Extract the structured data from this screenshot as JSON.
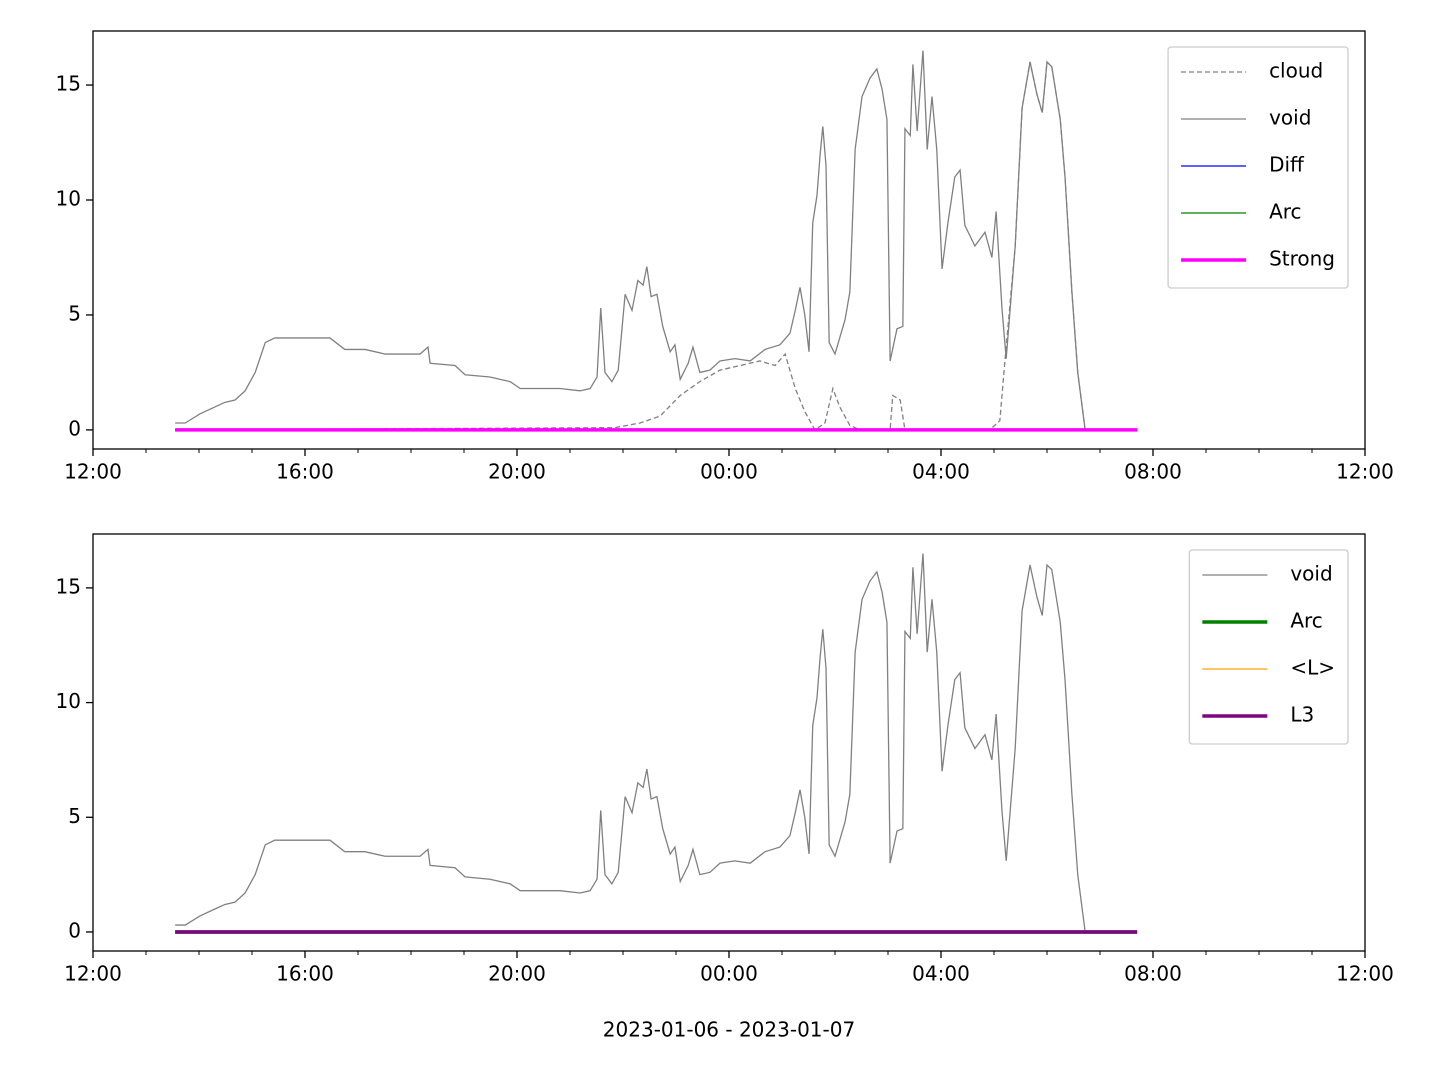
{
  "chart_data": [
    {
      "type": "line",
      "xlim": [
        12,
        36
      ],
      "xticks": [
        {
          "value": 12,
          "label": "12:00"
        },
        {
          "value": 16,
          "label": "16:00"
        },
        {
          "value": 20,
          "label": "20:00"
        },
        {
          "value": 24,
          "label": "00:00"
        },
        {
          "value": 28,
          "label": "04:00"
        },
        {
          "value": 32,
          "label": "08:00"
        },
        {
          "value": 36,
          "label": "12:00"
        }
      ],
      "xminorticks": [
        13,
        14,
        15,
        17,
        18,
        19,
        21,
        22,
        23,
        25,
        26,
        27,
        29,
        30,
        31,
        33,
        34,
        35
      ],
      "ylim": [
        -0.83,
        17.35
      ],
      "yticks": [
        0,
        5,
        10,
        15
      ],
      "legend": "upper right",
      "series": [
        {
          "name": "cloud",
          "color": "#808080",
          "linestyle": "dashed",
          "linewidth": 1.3,
          "x": [
            13.55,
            21.85,
            22.32,
            22.7,
            23.08,
            23.45,
            23.83,
            24.21,
            24.58,
            24.87,
            25.06,
            25.25,
            25.43,
            25.62,
            25.81,
            25.96,
            26.09,
            26.28,
            26.47,
            27.04,
            27.09,
            27.23,
            27.32,
            28.92,
            29.11,
            29.21,
            29.4,
            29.53,
            29.68,
            29.81,
            29.91,
            30.0,
            30.09,
            30.25,
            30.34,
            30.47,
            30.58,
            30.72
          ],
          "values": [
            0,
            0.1,
            0.3,
            0.6,
            1.5,
            2.1,
            2.6,
            2.8,
            3.0,
            2.8,
            3.3,
            1.8,
            0.8,
            0,
            0.3,
            1.8,
            1.0,
            0.2,
            0,
            0,
            1.5,
            1.3,
            0,
            0,
            0.4,
            3.1,
            8.0,
            14.0,
            16.0,
            14.6,
            13.8,
            16.0,
            15.8,
            13.5,
            11.0,
            6.0,
            2.5,
            0
          ]
        },
        {
          "name": "void",
          "color": "#808080",
          "linestyle": "solid",
          "linewidth": 1.3,
          "x": [
            13.55,
            13.74,
            14.02,
            14.3,
            14.49,
            14.68,
            14.87,
            15.06,
            15.25,
            15.43,
            15.91,
            16.47,
            16.75,
            17.13,
            17.51,
            18.17,
            18.32,
            18.36,
            18.83,
            19.02,
            19.49,
            19.87,
            20.06,
            20.81,
            21.19,
            21.38,
            21.51,
            21.58,
            21.66,
            21.79,
            21.91,
            22.04,
            22.17,
            22.28,
            22.38,
            22.45,
            22.53,
            22.64,
            22.75,
            22.89,
            22.98,
            23.08,
            23.23,
            23.32,
            23.45,
            23.64,
            23.83,
            24.11,
            24.4,
            24.68,
            24.96,
            25.15,
            25.25,
            25.34,
            25.43,
            25.51,
            25.58,
            25.66,
            25.72,
            25.77,
            25.83,
            25.89,
            26.0,
            26.19,
            26.28,
            26.38,
            26.51,
            26.66,
            26.79,
            26.89,
            26.98,
            27.04,
            27.17,
            27.28,
            27.32,
            27.42,
            27.47,
            27.55,
            27.66,
            27.74,
            27.83,
            27.92,
            28.02,
            28.13,
            28.26,
            28.36,
            28.45,
            28.64,
            28.83,
            28.96,
            29.04,
            29.15,
            29.23,
            29.4,
            29.53,
            29.68,
            29.81,
            29.91,
            30.0,
            30.09,
            30.25,
            30.34,
            30.47,
            30.58,
            30.72
          ],
          "values": [
            0.3,
            0.3,
            0.7,
            1.0,
            1.2,
            1.3,
            1.7,
            2.5,
            3.8,
            4.0,
            4.0,
            4.0,
            3.5,
            3.5,
            3.3,
            3.3,
            3.6,
            2.9,
            2.8,
            2.4,
            2.3,
            2.1,
            1.8,
            1.8,
            1.7,
            1.8,
            2.3,
            5.3,
            2.5,
            2.1,
            2.6,
            5.9,
            5.2,
            6.5,
            6.3,
            7.1,
            5.8,
            5.9,
            4.5,
            3.4,
            3.7,
            2.2,
            2.9,
            3.6,
            2.5,
            2.6,
            3.0,
            3.1,
            3.0,
            3.5,
            3.7,
            4.2,
            5.2,
            6.2,
            5.0,
            3.4,
            9.0,
            10.2,
            12.0,
            13.2,
            11.5,
            3.8,
            3.3,
            4.8,
            6.0,
            12.2,
            14.5,
            15.3,
            15.7,
            14.8,
            13.5,
            3.0,
            4.4,
            4.5,
            13.1,
            12.8,
            15.9,
            13.0,
            16.5,
            12.2,
            14.5,
            12.2,
            7.0,
            9.0,
            11.0,
            11.3,
            8.9,
            8.0,
            8.6,
            7.5,
            9.5,
            5.3,
            3.1,
            8.0,
            14.0,
            16.0,
            14.6,
            13.8,
            16.0,
            15.8,
            13.5,
            11.0,
            6.0,
            2.5,
            0
          ]
        },
        {
          "name": "Diff",
          "color": "#0000ff",
          "linestyle": "solid",
          "linewidth": 1.3,
          "x": [
            13.55,
            31.7
          ],
          "values": [
            0,
            0
          ]
        },
        {
          "name": "Arc",
          "color": "#008000",
          "linestyle": "solid",
          "linewidth": 1.3,
          "x": [
            13.55,
            31.7
          ],
          "values": [
            0,
            0
          ]
        },
        {
          "name": "Strong",
          "color": "#ff00ff",
          "linestyle": "solid",
          "linewidth": 3.5,
          "x": [
            13.55,
            31.7
          ],
          "values": [
            0,
            0
          ]
        }
      ]
    },
    {
      "type": "line",
      "xlabel": "2023-01-06 - 2023-01-07",
      "xlim": [
        12,
        36
      ],
      "xticks": [
        {
          "value": 12,
          "label": "12:00"
        },
        {
          "value": 16,
          "label": "16:00"
        },
        {
          "value": 20,
          "label": "20:00"
        },
        {
          "value": 24,
          "label": "00:00"
        },
        {
          "value": 28,
          "label": "04:00"
        },
        {
          "value": 32,
          "label": "08:00"
        },
        {
          "value": 36,
          "label": "12:00"
        }
      ],
      "xminorticks": [
        13,
        14,
        15,
        17,
        18,
        19,
        21,
        22,
        23,
        25,
        26,
        27,
        29,
        30,
        31,
        33,
        34,
        35
      ],
      "ylim": [
        -0.83,
        17.35
      ],
      "yticks": [
        0,
        5,
        10,
        15
      ],
      "legend": "upper right",
      "series": [
        {
          "name": "void",
          "color": "#808080",
          "linestyle": "solid",
          "linewidth": 1.3,
          "x": [
            13.55,
            13.74,
            14.02,
            14.3,
            14.49,
            14.68,
            14.87,
            15.06,
            15.25,
            15.43,
            15.91,
            16.47,
            16.75,
            17.13,
            17.51,
            18.17,
            18.32,
            18.36,
            18.83,
            19.02,
            19.49,
            19.87,
            20.06,
            20.81,
            21.19,
            21.38,
            21.51,
            21.58,
            21.66,
            21.79,
            21.91,
            22.04,
            22.17,
            22.28,
            22.38,
            22.45,
            22.53,
            22.64,
            22.75,
            22.89,
            22.98,
            23.08,
            23.23,
            23.32,
            23.45,
            23.64,
            23.83,
            24.11,
            24.4,
            24.68,
            24.96,
            25.15,
            25.25,
            25.34,
            25.43,
            25.51,
            25.58,
            25.66,
            25.72,
            25.77,
            25.83,
            25.89,
            26.0,
            26.19,
            26.28,
            26.38,
            26.51,
            26.66,
            26.79,
            26.89,
            26.98,
            27.04,
            27.17,
            27.28,
            27.32,
            27.42,
            27.47,
            27.55,
            27.66,
            27.74,
            27.83,
            27.92,
            28.02,
            28.13,
            28.26,
            28.36,
            28.45,
            28.64,
            28.83,
            28.96,
            29.04,
            29.15,
            29.23,
            29.4,
            29.53,
            29.68,
            29.81,
            29.91,
            30.0,
            30.09,
            30.25,
            30.34,
            30.47,
            30.58,
            30.72
          ],
          "values": [
            0.3,
            0.3,
            0.7,
            1.0,
            1.2,
            1.3,
            1.7,
            2.5,
            3.8,
            4.0,
            4.0,
            4.0,
            3.5,
            3.5,
            3.3,
            3.3,
            3.6,
            2.9,
            2.8,
            2.4,
            2.3,
            2.1,
            1.8,
            1.8,
            1.7,
            1.8,
            2.3,
            5.3,
            2.5,
            2.1,
            2.6,
            5.9,
            5.2,
            6.5,
            6.3,
            7.1,
            5.8,
            5.9,
            4.5,
            3.4,
            3.7,
            2.2,
            2.9,
            3.6,
            2.5,
            2.6,
            3.0,
            3.1,
            3.0,
            3.5,
            3.7,
            4.2,
            5.2,
            6.2,
            5.0,
            3.4,
            9.0,
            10.2,
            12.0,
            13.2,
            11.5,
            3.8,
            3.3,
            4.8,
            6.0,
            12.2,
            14.5,
            15.3,
            15.7,
            14.8,
            13.5,
            3.0,
            4.4,
            4.5,
            13.1,
            12.8,
            15.9,
            13.0,
            16.5,
            12.2,
            14.5,
            12.2,
            7.0,
            9.0,
            11.0,
            11.3,
            8.9,
            8.0,
            8.6,
            7.5,
            9.5,
            5.3,
            3.1,
            8.0,
            14.0,
            16.0,
            14.6,
            13.8,
            16.0,
            15.8,
            13.5,
            11.0,
            6.0,
            2.5,
            0
          ]
        },
        {
          "name": "Arc",
          "color": "#008000",
          "linestyle": "solid",
          "linewidth": 3.5,
          "x": [
            13.55,
            31.7
          ],
          "values": [
            0,
            0
          ]
        },
        {
          "name": "<L>",
          "color": "#ffa500",
          "linestyle": "solid",
          "linewidth": 1.3,
          "x": [
            13.55,
            31.7
          ],
          "values": [
            0,
            0
          ]
        },
        {
          "name": "L3",
          "color": "#800080",
          "linestyle": "solid",
          "linewidth": 3.5,
          "x": [
            13.55,
            31.7
          ],
          "values": [
            0,
            0
          ]
        }
      ]
    }
  ]
}
